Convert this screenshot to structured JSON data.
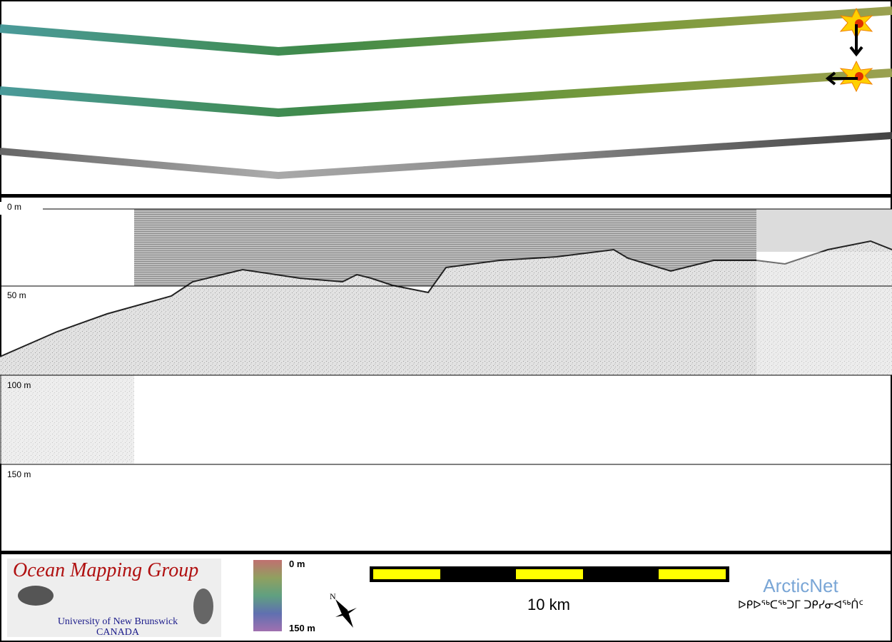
{
  "profile": {
    "depth_labels": [
      "0 m",
      "50 m",
      "100 m",
      "150 m"
    ]
  },
  "footer": {
    "logo": {
      "title": "Ocean Mapping Group",
      "line1": "University of New Brunswick",
      "line2": "CANADA"
    },
    "color_bar": {
      "top": "0 m",
      "bottom": "150 m"
    },
    "scale_bar": "10 km",
    "partner": {
      "name": "ArcticNet",
      "syllabics": "ᐅᑭᐅᖅᑕᖅᑐᒥ ᑐᑭᓯᓂᐊᖅᑏᑦ"
    }
  }
}
